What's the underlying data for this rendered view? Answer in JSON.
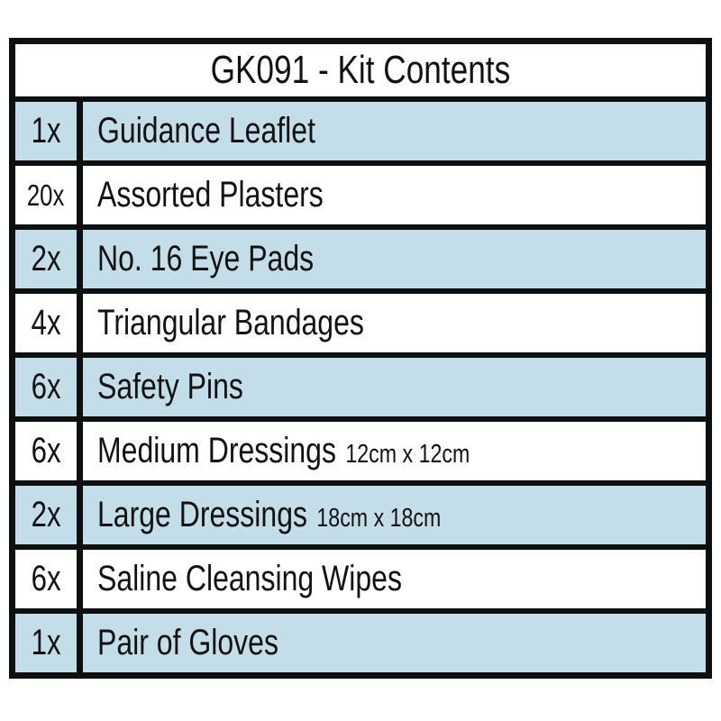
{
  "title": "GK091 - Kit Contents",
  "colors": {
    "row_alt": "#c4dee9",
    "row_plain": "#ffffff",
    "border": "#0d0f10",
    "text": "#121212"
  },
  "rows": [
    {
      "qty": "1x",
      "item": "Guidance Leaflet",
      "size": ""
    },
    {
      "qty": "20x",
      "item": "Assorted Plasters",
      "size": ""
    },
    {
      "qty": "2x",
      "item": "No. 16 Eye Pads",
      "size": ""
    },
    {
      "qty": "4x",
      "item": "Triangular Bandages",
      "size": ""
    },
    {
      "qty": "6x",
      "item": "Safety Pins",
      "size": ""
    },
    {
      "qty": "6x",
      "item": "Medium Dressings",
      "size": "12cm x 12cm"
    },
    {
      "qty": "2x",
      "item": "Large Dressings",
      "size": "18cm x 18cm"
    },
    {
      "qty": "6x",
      "item": "Saline Cleansing Wipes",
      "size": ""
    },
    {
      "qty": "1x",
      "item": "Pair of Gloves",
      "size": ""
    }
  ]
}
